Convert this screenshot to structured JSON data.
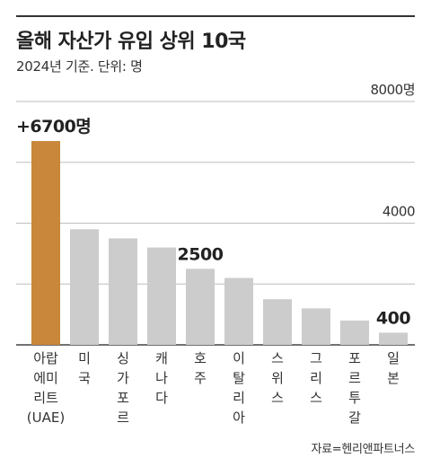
{
  "header": {
    "title": "올해 자산가 유입 상위 10국",
    "subtitle": "2024년 기준. 단위: 명"
  },
  "footer": {
    "source": "자료=헨리앤파트너스"
  },
  "chart_data": {
    "type": "bar",
    "title": "올해 자산가 유입 상위 10국",
    "subtitle": "2024년 기준. 단위: 명",
    "categories": [
      "아랍에미리트(UAE)",
      "미국",
      "싱가포르",
      "캐나다",
      "호주",
      "이탈리아",
      "스위스",
      "그리스",
      "포르투갈",
      "일본"
    ],
    "category_labels": [
      [
        "아랍",
        "에미",
        "리트",
        "(UAE)"
      ],
      [
        "미",
        "국"
      ],
      [
        "싱",
        "가",
        "포",
        "르"
      ],
      [
        "캐",
        "나",
        "다"
      ],
      [
        "호",
        "주"
      ],
      [
        "이",
        "탈",
        "리",
        "아"
      ],
      [
        "스",
        "위",
        "스"
      ],
      [
        "그",
        "리",
        "스"
      ],
      [
        "포",
        "르",
        "투",
        "갈"
      ],
      [
        "일",
        "본"
      ]
    ],
    "values": [
      6700,
      3800,
      3500,
      3200,
      2500,
      2200,
      1500,
      1200,
      800,
      400
    ],
    "data_labels": [
      "+6700명",
      "",
      "",
      "",
      "2500",
      "",
      "",
      "",
      "",
      "400"
    ],
    "highlight_index": 0,
    "highlight_color": "#c8873a",
    "bar_color": "#cccccc",
    "ylim": [
      0,
      8000
    ],
    "yticks": [
      0,
      2000,
      4000,
      6000,
      8000
    ],
    "ytick_labels": [
      "",
      "",
      "4000",
      "",
      "8000명"
    ],
    "grid": true
  }
}
